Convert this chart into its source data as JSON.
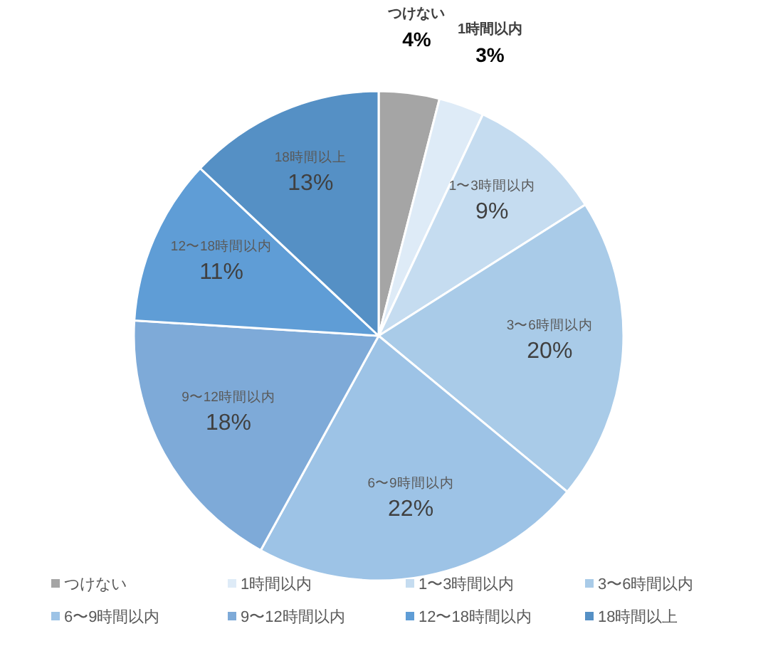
{
  "chart_data": {
    "type": "pie",
    "categories": [
      "つけない",
      "1時間以内",
      "1〜3時間以内",
      "3〜6時間以内",
      "6〜9時間以内",
      "9〜12時間以内",
      "12〜18時間以内",
      "18時間以上"
    ],
    "values": [
      4,
      3,
      9,
      20,
      22,
      18,
      11,
      13
    ],
    "colors": [
      "#a5a5a5",
      "#deebf7",
      "#c5dcf0",
      "#a9cbe8",
      "#9dc3e6",
      "#7eaad8",
      "#5f9dd6",
      "#5590c5"
    ],
    "value_labels": [
      "4%",
      "3%",
      "9%",
      "20%",
      "22%",
      "18%",
      "11%",
      "13%"
    ],
    "legend": "bottom"
  }
}
